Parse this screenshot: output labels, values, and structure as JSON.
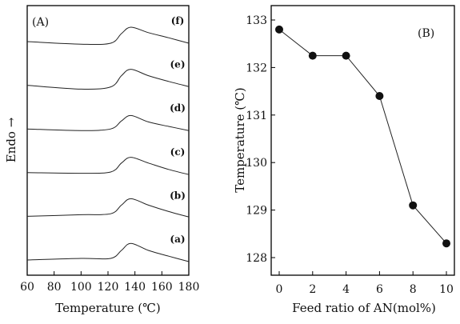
{
  "chart_data": [
    {
      "type": "line",
      "panel_label": "(A)",
      "xlabel": "Temperature (℃)",
      "ylabel": "Endo →",
      "xlim": [
        60,
        180
      ],
      "x_ticks": [
        "60",
        "80",
        "100",
        "120",
        "140",
        "160",
        "180"
      ],
      "y_ticks_shown": false,
      "grid": false,
      "series": [
        {
          "label": "(f)",
          "x": [
            60,
            100,
            122,
            130,
            137,
            150,
            165,
            180
          ],
          "y": [
            0,
            -0.08,
            -0.05,
            0.25,
            0.45,
            0.28,
            0.12,
            -0.05
          ]
        },
        {
          "label": "(e)",
          "x": [
            60,
            100,
            122,
            130,
            137,
            150,
            165,
            180
          ],
          "y": [
            0,
            -0.12,
            -0.05,
            0.3,
            0.5,
            0.3,
            0.12,
            -0.04
          ]
        },
        {
          "label": "(d)",
          "x": [
            60,
            100,
            122,
            130,
            137,
            150,
            165,
            180
          ],
          "y": [
            0,
            -0.05,
            0.0,
            0.25,
            0.42,
            0.22,
            0.08,
            -0.05
          ]
        },
        {
          "label": "(c)",
          "x": [
            60,
            100,
            122,
            130,
            137,
            150,
            165,
            180
          ],
          "y": [
            0,
            -0.02,
            0.02,
            0.3,
            0.48,
            0.3,
            0.1,
            -0.06
          ]
        },
        {
          "label": "(b)",
          "x": [
            60,
            100,
            122,
            130,
            137,
            150,
            165,
            180
          ],
          "y": [
            0,
            0.05,
            0.08,
            0.35,
            0.55,
            0.35,
            0.15,
            -0.02
          ]
        },
        {
          "label": "(a)",
          "x": [
            60,
            100,
            122,
            130,
            137,
            150,
            165,
            180
          ],
          "y": [
            0,
            0.05,
            0.05,
            0.3,
            0.52,
            0.3,
            0.12,
            -0.05
          ]
        }
      ]
    },
    {
      "type": "line",
      "panel_label": "(B)",
      "xlabel": "Feed ratio of AN(mol%)",
      "ylabel": "Temperature (℃)",
      "xlim": [
        0,
        10
      ],
      "ylim": [
        128,
        133
      ],
      "x_ticks": [
        "0",
        "2",
        "4",
        "6",
        "8",
        "10"
      ],
      "y_ticks": [
        "128",
        "129",
        "130",
        "131",
        "132",
        "133"
      ],
      "grid": false,
      "series": [
        {
          "x": [
            0,
            2,
            4,
            6,
            8,
            10
          ],
          "y": [
            132.8,
            132.25,
            132.25,
            131.4,
            129.1,
            128.3
          ]
        }
      ]
    }
  ],
  "colors": {
    "line": "#222222",
    "marker": "#111111",
    "axis": "#000000"
  }
}
